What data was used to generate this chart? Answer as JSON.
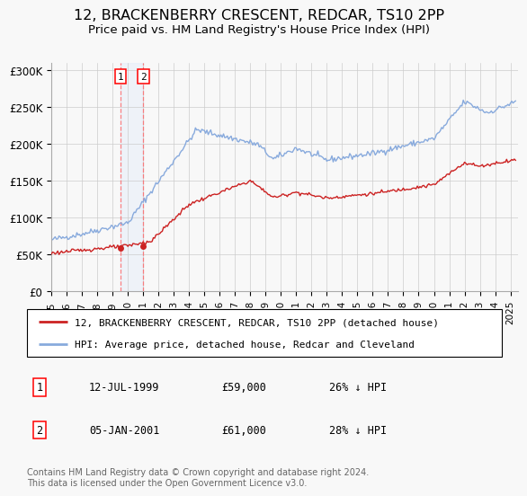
{
  "title": "12, BRACKENBERRY CRESCENT, REDCAR, TS10 2PP",
  "subtitle": "Price paid vs. HM Land Registry's House Price Index (HPI)",
  "title_fontsize": 11.5,
  "subtitle_fontsize": 9.5,
  "hpi_color": "#88aadd",
  "price_color": "#cc2222",
  "background_color": "#f8f8f8",
  "plot_bg_color": "#f8f8f8",
  "grid_color": "#cccccc",
  "ylabel_ticks": [
    "£0",
    "£50K",
    "£100K",
    "£150K",
    "£200K",
    "£250K",
    "£300K"
  ],
  "ylabel_values": [
    0,
    50000,
    100000,
    150000,
    200000,
    250000,
    300000
  ],
  "ylim": [
    0,
    310000
  ],
  "sale1_x": 1999.53,
  "sale1_y": 59000,
  "sale1_label": "1",
  "sale2_x": 2001.01,
  "sale2_y": 61000,
  "sale2_label": "2",
  "legend_line1": "12, BRACKENBERRY CRESCENT, REDCAR, TS10 2PP (detached house)",
  "legend_line2": "HPI: Average price, detached house, Redcar and Cleveland",
  "table_row1": [
    "1",
    "12-JUL-1999",
    "£59,000",
    "26% ↓ HPI"
  ],
  "table_row2": [
    "2",
    "05-JAN-2001",
    "£61,000",
    "28% ↓ HPI"
  ],
  "footer": "Contains HM Land Registry data © Crown copyright and database right 2024.\nThis data is licensed under the Open Government Licence v3.0.",
  "xmin": 1995.0,
  "xmax": 2025.5,
  "xtick_years": [
    1995,
    1996,
    1997,
    1998,
    1999,
    2000,
    2001,
    2002,
    2003,
    2004,
    2005,
    2006,
    2007,
    2008,
    2009,
    2010,
    2011,
    2012,
    2013,
    2014,
    2015,
    2016,
    2017,
    2018,
    2019,
    2020,
    2021,
    2022,
    2023,
    2024,
    2025
  ]
}
